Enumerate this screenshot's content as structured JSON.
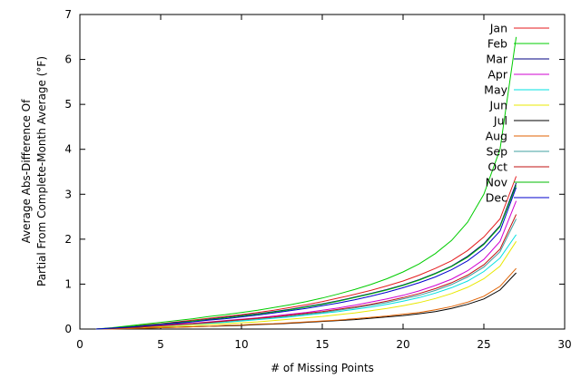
{
  "chart_data": {
    "type": "line",
    "title": "",
    "xlabel": "# of Missing Points",
    "ylabel_lines": [
      "Average Abs-Difference Of",
      "Partial From Complete-Month Average (°F)"
    ],
    "xlim": [
      0,
      30
    ],
    "ylim": [
      0,
      7
    ],
    "xticks": [
      0,
      5,
      10,
      15,
      20,
      25,
      30
    ],
    "yticks": [
      0,
      1,
      2,
      3,
      4,
      5,
      6,
      7
    ],
    "grid": false,
    "legend_position": "top-right",
    "x": [
      1,
      2,
      3,
      4,
      5,
      6,
      7,
      8,
      9,
      10,
      11,
      12,
      13,
      14,
      15,
      16,
      17,
      18,
      19,
      20,
      21,
      22,
      23,
      24,
      25,
      26,
      27
    ],
    "series": [
      {
        "name": "Jan",
        "color": "#e41a1c",
        "values": [
          0,
          0.02,
          0.05,
          0.09,
          0.12,
          0.16,
          0.2,
          0.24,
          0.28,
          0.32,
          0.37,
          0.42,
          0.48,
          0.54,
          0.61,
          0.69,
          0.77,
          0.86,
          0.96,
          1.07,
          1.2,
          1.35,
          1.52,
          1.75,
          2.05,
          2.45,
          3.4
        ]
      },
      {
        "name": "Feb",
        "color": "#00cc00",
        "values": [
          0,
          0.03,
          0.07,
          0.11,
          0.15,
          0.19,
          0.23,
          0.28,
          0.32,
          0.37,
          0.42,
          0.48,
          0.54,
          0.61,
          0.69,
          0.78,
          0.88,
          0.99,
          1.12,
          1.27,
          1.45,
          1.68,
          1.97,
          2.38,
          3.0,
          4.0,
          6.5
        ]
      },
      {
        "name": "Mar",
        "color": "#000080",
        "values": [
          0,
          0.02,
          0.05,
          0.08,
          0.11,
          0.15,
          0.18,
          0.22,
          0.26,
          0.3,
          0.34,
          0.39,
          0.44,
          0.5,
          0.56,
          0.63,
          0.71,
          0.79,
          0.88,
          0.98,
          1.1,
          1.24,
          1.4,
          1.62,
          1.9,
          2.3,
          3.25
        ]
      },
      {
        "name": "Apr",
        "color": "#d000d0",
        "values": [
          0,
          0.02,
          0.04,
          0.06,
          0.08,
          0.11,
          0.13,
          0.16,
          0.19,
          0.22,
          0.25,
          0.29,
          0.33,
          0.37,
          0.42,
          0.47,
          0.53,
          0.6,
          0.67,
          0.75,
          0.85,
          0.97,
          1.11,
          1.3,
          1.55,
          1.95,
          2.85
        ]
      },
      {
        "name": "May",
        "color": "#00e0e0",
        "values": [
          0,
          0.01,
          0.03,
          0.05,
          0.07,
          0.09,
          0.11,
          0.13,
          0.15,
          0.18,
          0.21,
          0.24,
          0.27,
          0.31,
          0.35,
          0.39,
          0.44,
          0.49,
          0.55,
          0.62,
          0.7,
          0.8,
          0.92,
          1.07,
          1.28,
          1.58,
          2.1
        ]
      },
      {
        "name": "Jun",
        "color": "#e8e800",
        "values": [
          0,
          0.01,
          0.02,
          0.03,
          0.05,
          0.06,
          0.08,
          0.1,
          0.12,
          0.14,
          0.16,
          0.19,
          0.22,
          0.25,
          0.28,
          0.32,
          0.36,
          0.41,
          0.46,
          0.52,
          0.59,
          0.68,
          0.79,
          0.93,
          1.12,
          1.4,
          1.95
        ]
      },
      {
        "name": "Jul",
        "color": "#000000",
        "values": [
          0,
          0,
          0.01,
          0.02,
          0.03,
          0.04,
          0.05,
          0.06,
          0.07,
          0.08,
          0.1,
          0.11,
          0.13,
          0.15,
          0.17,
          0.19,
          0.21,
          0.24,
          0.27,
          0.3,
          0.34,
          0.39,
          0.46,
          0.55,
          0.67,
          0.87,
          1.25
        ]
      },
      {
        "name": "Aug",
        "color": "#e06000",
        "values": [
          0,
          0,
          0.01,
          0.02,
          0.03,
          0.04,
          0.05,
          0.06,
          0.08,
          0.09,
          0.11,
          0.12,
          0.14,
          0.16,
          0.18,
          0.2,
          0.23,
          0.26,
          0.29,
          0.33,
          0.37,
          0.43,
          0.5,
          0.6,
          0.73,
          0.95,
          1.35
        ]
      },
      {
        "name": "Sep",
        "color": "#40a0a0",
        "values": [
          0,
          0.01,
          0.03,
          0.05,
          0.07,
          0.09,
          0.12,
          0.14,
          0.17,
          0.2,
          0.23,
          0.26,
          0.29,
          0.33,
          0.37,
          0.42,
          0.47,
          0.53,
          0.59,
          0.67,
          0.75,
          0.86,
          0.99,
          1.16,
          1.38,
          1.72,
          2.45
        ]
      },
      {
        "name": "Oct",
        "color": "#c01010",
        "values": [
          0,
          0.01,
          0.03,
          0.05,
          0.07,
          0.1,
          0.12,
          0.15,
          0.18,
          0.21,
          0.24,
          0.27,
          0.31,
          0.35,
          0.39,
          0.44,
          0.49,
          0.55,
          0.62,
          0.7,
          0.79,
          0.9,
          1.03,
          1.2,
          1.43,
          1.78,
          2.55
        ]
      },
      {
        "name": "Nov",
        "color": "#00bb00",
        "values": [
          0,
          0.02,
          0.05,
          0.08,
          0.11,
          0.14,
          0.18,
          0.21,
          0.25,
          0.29,
          0.33,
          0.38,
          0.43,
          0.49,
          0.55,
          0.62,
          0.7,
          0.78,
          0.87,
          0.97,
          1.09,
          1.23,
          1.39,
          1.6,
          1.88,
          2.28,
          3.2
        ]
      },
      {
        "name": "Dec",
        "color": "#0000cc",
        "values": [
          0,
          0.02,
          0.04,
          0.07,
          0.1,
          0.13,
          0.16,
          0.2,
          0.23,
          0.27,
          0.31,
          0.36,
          0.41,
          0.46,
          0.52,
          0.58,
          0.65,
          0.73,
          0.82,
          0.92,
          1.03,
          1.16,
          1.32,
          1.52,
          1.79,
          2.18,
          3.15
        ]
      }
    ]
  }
}
